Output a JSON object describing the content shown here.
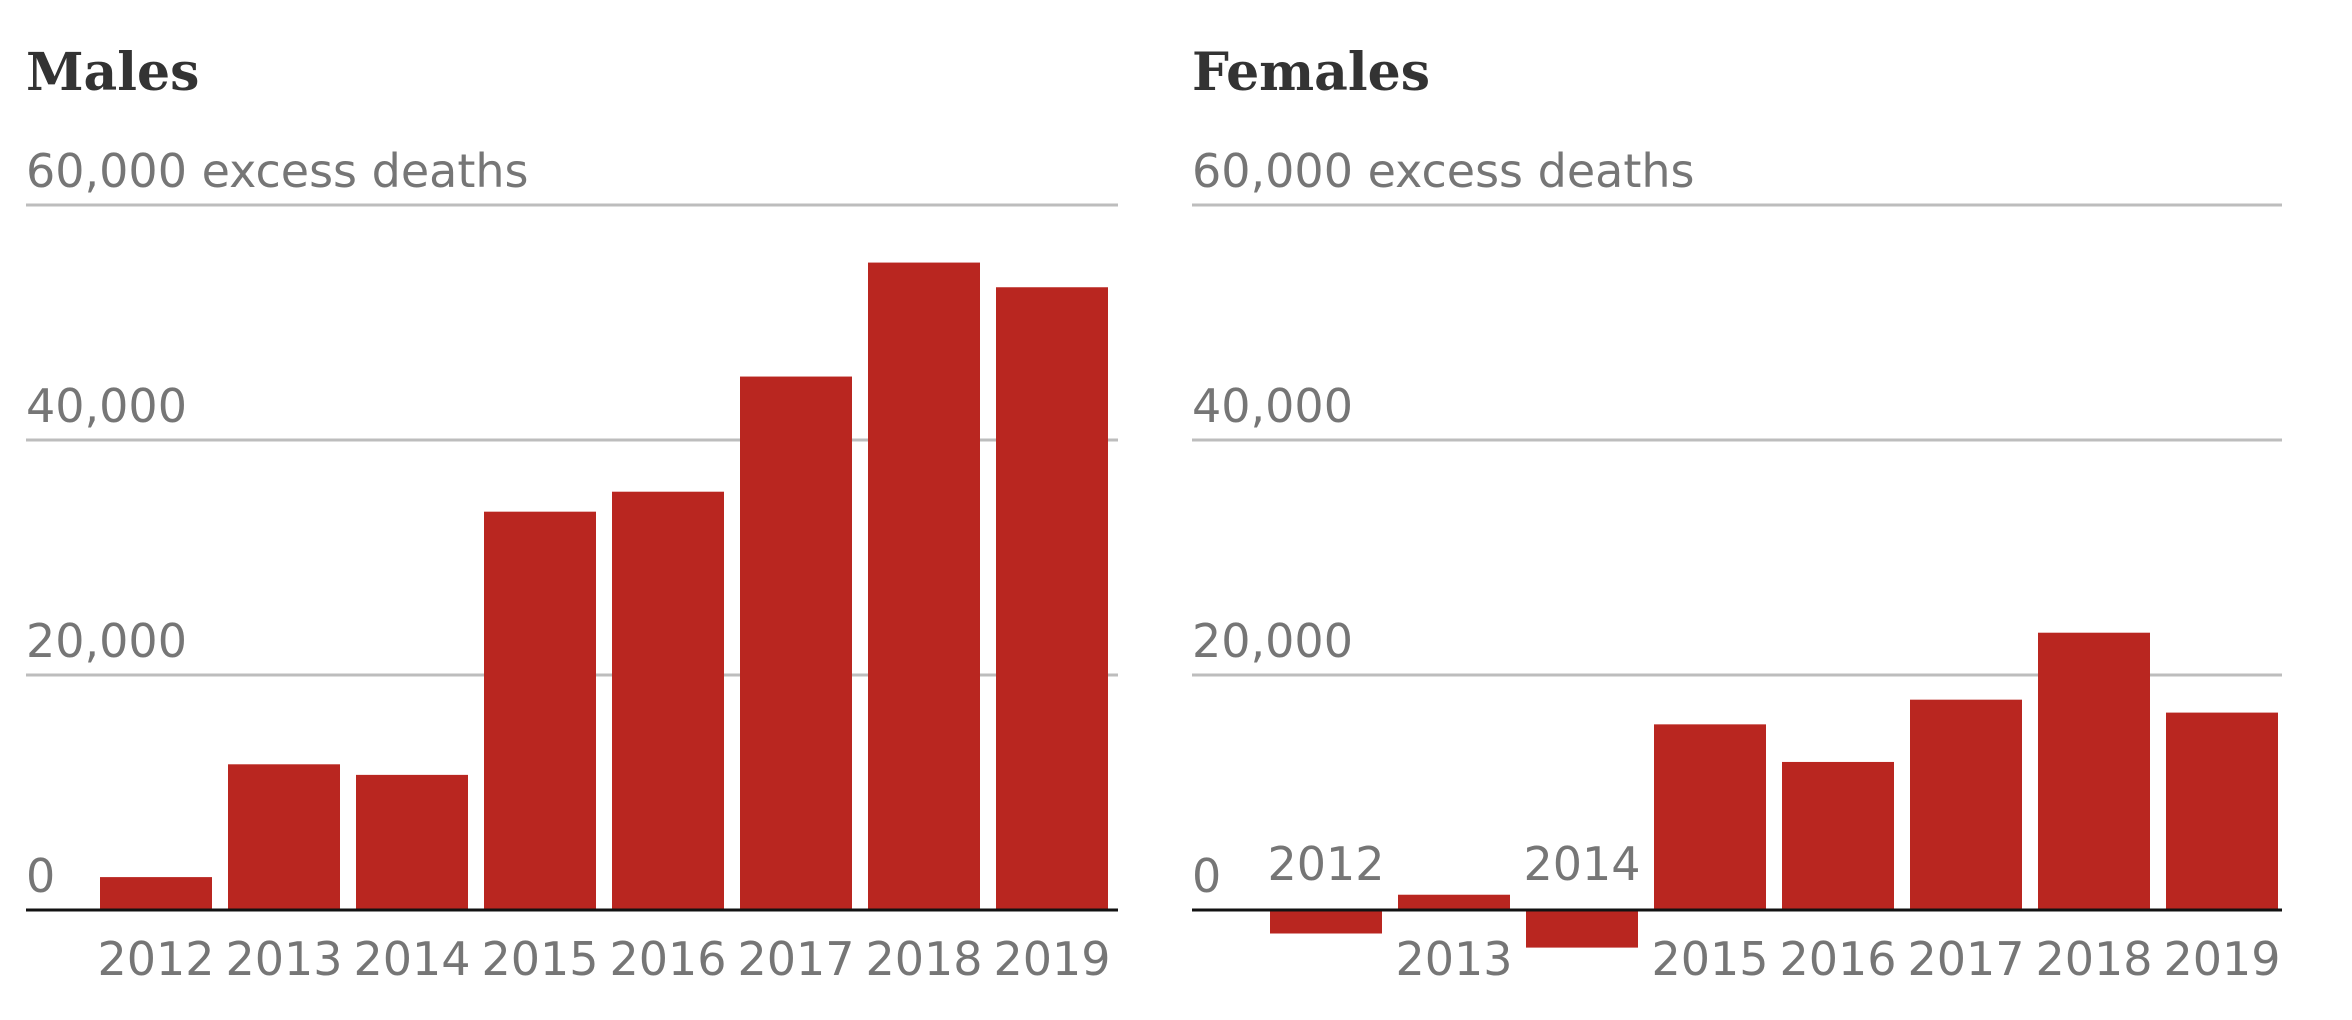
{
  "chart_data": [
    {
      "type": "bar",
      "title": "Males",
      "ylabel": "excess deaths",
      "ytick_labels": [
        "0",
        "20,000",
        "40,000",
        "60,000 excess deaths"
      ],
      "yticks": [
        0,
        20000,
        40000,
        60000
      ],
      "ylim": [
        -4000,
        60000
      ],
      "categories": [
        "2012",
        "2013",
        "2014",
        "2015",
        "2016",
        "2017",
        "2018",
        "2019"
      ],
      "values": [
        2800,
        12400,
        11500,
        33900,
        35600,
        45400,
        55100,
        53000
      ],
      "color": "#b92620",
      "grid": true
    },
    {
      "type": "bar",
      "title": "Females",
      "ylabel": "excess deaths",
      "ytick_labels": [
        "0",
        "20,000",
        "40,000",
        "60,000 excess deaths"
      ],
      "yticks": [
        0,
        20000,
        40000,
        60000
      ],
      "ylim": [
        -4000,
        60000
      ],
      "categories": [
        "2012",
        "2013",
        "2014",
        "2015",
        "2016",
        "2017",
        "2018",
        "2019"
      ],
      "values": [
        -2000,
        1300,
        -3200,
        15800,
        12600,
        17900,
        23600,
        16800
      ],
      "color": "#b92620",
      "grid": true
    }
  ]
}
